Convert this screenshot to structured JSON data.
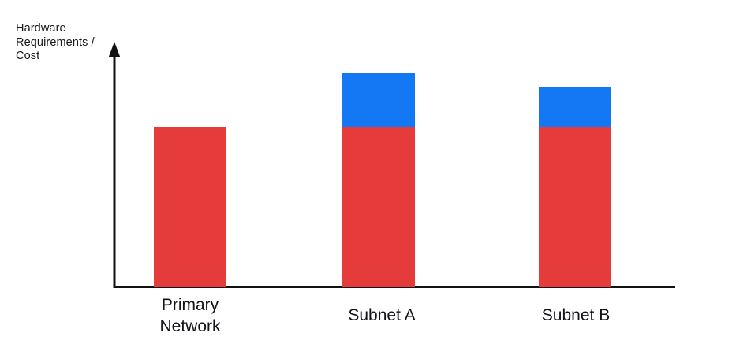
{
  "chart": {
    "ylabel": "Hardware Requirements / Cost",
    "xlabel": "",
    "categories": [
      "Primary Network",
      "Subnet A",
      "Subnet B"
    ]
  },
  "chart_data": {
    "type": "bar",
    "stacked": true,
    "title": "",
    "xlabel": "",
    "ylabel": "Hardware Requirements / Cost",
    "categories": [
      "Primary Network",
      "Subnet A",
      "Subnet B"
    ],
    "series": [
      {
        "name": "red-base-segment",
        "color": "#E63B3B",
        "values": [
          66,
          66,
          66
        ]
      },
      {
        "name": "blue-top-segment",
        "color": "#1478F5",
        "values": [
          0,
          22,
          16
        ]
      }
    ],
    "ylim": [
      0,
      100
    ],
    "value_units": "relative (axis has no numeric ticks; values estimated from bar heights)",
    "grid": false,
    "legend": "none",
    "axis_color": "#111111",
    "y_axis_has_arrowhead": true,
    "x_axis_has_arrowhead": false
  }
}
